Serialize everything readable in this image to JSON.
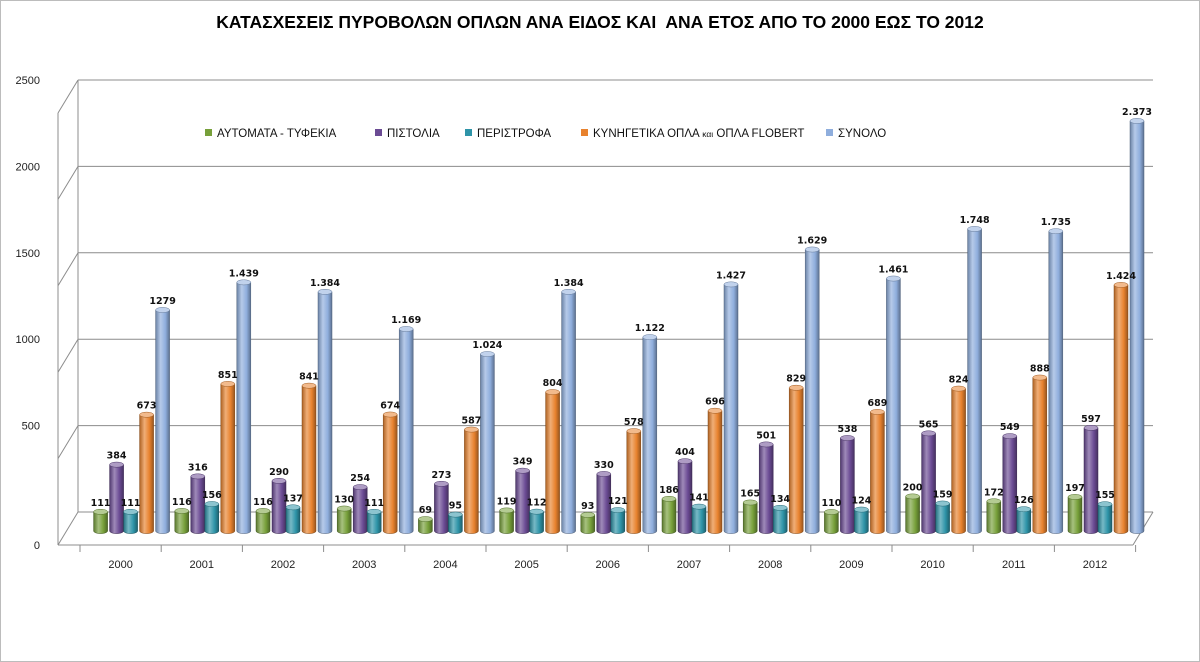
{
  "chart_data": {
    "type": "bar",
    "title": "ΚΑΤΑΣΧΕΣΕΙΣ ΠΥΡΟΒΟΛΩΝ ΟΠΛΩΝ ΑΝΑ ΕΙΔΟΣ ΚΑΙ  ΑΝΑ ΕΤΟΣ ΑΠΟ ΤΟ 2000 ΕΩΣ ΤΟ 2012",
    "xlabel": "",
    "ylabel": "",
    "ylim": [
      0,
      2500
    ],
    "yticks": [
      0,
      500,
      1000,
      1500,
      2000,
      2500
    ],
    "grid": true,
    "legend_position": "top",
    "style": "3d-cylinder",
    "categories": [
      "2000",
      "2001",
      "2002",
      "2003",
      "2004",
      "2005",
      "2006",
      "2007",
      "2008",
      "2009",
      "2010",
      "2011",
      "2012"
    ],
    "series": [
      {
        "name": "ΑΥΤΟΜΑΤΑ  -  ΤΥΦΕΚΙΑ",
        "color": "#77A03A",
        "values": [
          111,
          116,
          116,
          130,
          69,
          119,
          93,
          186,
          165,
          110,
          200,
          172,
          197
        ],
        "labels": [
          "111",
          "116",
          "116",
          "130",
          "69",
          "119",
          "93",
          "186",
          "165",
          "110",
          "200",
          "172",
          "197"
        ]
      },
      {
        "name": "ΠΙΣΤΟΛΙΑ",
        "color": "#6B4B94",
        "values": [
          384,
          316,
          290,
          254,
          273,
          349,
          330,
          404,
          501,
          538,
          565,
          549,
          597
        ],
        "labels": [
          "384",
          "316",
          "290",
          "254",
          "273",
          "349",
          "330",
          "404",
          "501",
          "538",
          "565",
          "549",
          "597"
        ]
      },
      {
        "name": "ΠΕΡΙΣΤΡΟΦΑ",
        "color": "#2E94A8",
        "values": [
          111,
          156,
          137,
          111,
          95,
          112,
          121,
          141,
          134,
          124,
          159,
          126,
          155
        ],
        "labels": [
          "111",
          "156",
          "137",
          "111",
          "95",
          "112",
          "121",
          "141",
          "134",
          "124",
          "159",
          "126",
          "155"
        ]
      },
      {
        "name_parts": [
          "ΚΥΝΗΓΕΤΙΚΑ ΟΠΛΑ ",
          "και",
          " ΟΠΛΑ FLOBERT"
        ],
        "name": "ΚΥΝΗΓΕΤΙΚΑ ΟΠΛΑ και ΟΠΛΑ FLOBERT",
        "color": "#E8822E",
        "values": [
          673,
          851,
          841,
          674,
          587,
          804,
          578,
          696,
          829,
          689,
          824,
          888,
          1424
        ],
        "labels": [
          "673",
          "851",
          "841",
          "674",
          "587",
          "804",
          "578",
          "696",
          "829",
          "689",
          "824",
          "888",
          "1.424"
        ]
      },
      {
        "name": "ΣΥΝΟΛΟ",
        "color": "#8FAEDD",
        "values": [
          1279,
          1439,
          1384,
          1169,
          1024,
          1384,
          1122,
          1427,
          1629,
          1461,
          1748,
          1735,
          2373
        ],
        "labels": [
          "1279",
          "1.439",
          "1.384",
          "1.169",
          "1.024",
          "1.384",
          "1.122",
          "1.427",
          "1.629",
          "1.461",
          "1.748",
          "1.735",
          "2.373"
        ]
      }
    ]
  }
}
